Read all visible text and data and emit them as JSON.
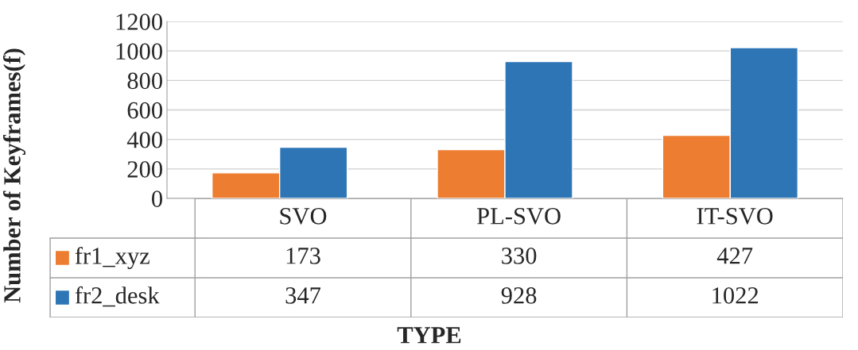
{
  "chart_data": {
    "type": "bar",
    "xlabel": "TYPE",
    "ylabel": "Number of Keyframes(f)",
    "categories": [
      "SVO",
      "PL-SVO",
      "IT-SVO"
    ],
    "series": [
      {
        "name": "fr1_xyz",
        "color": "#ed7d31",
        "values": [
          173,
          330,
          427
        ]
      },
      {
        "name": "fr2_desk",
        "color": "#2e75b6",
        "values": [
          347,
          928,
          1022
        ]
      }
    ],
    "ylim": [
      0,
      1200
    ],
    "yticks": [
      0,
      200,
      400,
      600,
      800,
      1000,
      1200
    ],
    "grid": "y",
    "legend": "bottom",
    "data_labels": true
  }
}
